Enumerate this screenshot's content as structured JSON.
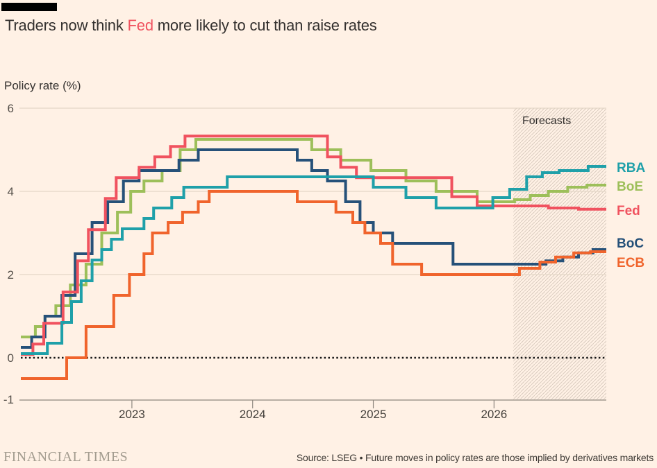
{
  "page": {
    "background": "#FFF1E5",
    "accent_bar_color": "#000000"
  },
  "header": {
    "title_prefix": "Traders now think ",
    "title_highlight": "Fed",
    "title_suffix": " more likely to cut than raise rates",
    "highlight_color": "#f0525f"
  },
  "chart_data": {
    "type": "line",
    "title": "Traders now think Fed more likely to cut than raise rates",
    "ylabel": "Policy rate (%)",
    "forecast_label": "Forecasts",
    "x_ticks": [
      "2023",
      "2024",
      "2025",
      "2026"
    ],
    "x_tick_values": [
      2023,
      2024,
      2025,
      2026
    ],
    "y_ticks": [
      {
        "label": "6",
        "value": 6
      },
      {
        "label": "4",
        "value": 4
      },
      {
        "label": "2",
        "value": 2
      },
      {
        "label": "0",
        "value": 0
      },
      {
        "label": "-1",
        "value": -1
      }
    ],
    "ylim": [
      -1,
      6
    ],
    "x_domain": [
      2022.08,
      2026.93
    ],
    "forecast_start": 2026.16,
    "grid_values": [
      6,
      4,
      2
    ],
    "zero_value": 0,
    "legend_position": "right",
    "draw_order": [
      "BoE",
      "BoC",
      "Fed",
      "ECB",
      "RBA"
    ],
    "series": [
      {
        "name": "RBA",
        "color": "#1fa0a9",
        "label_y": 241,
        "points": [
          [
            2022.08,
            0.1
          ],
          [
            2022.3,
            0.35
          ],
          [
            2022.42,
            0.85
          ],
          [
            2022.5,
            1.35
          ],
          [
            2022.58,
            1.85
          ],
          [
            2022.67,
            2.35
          ],
          [
            2022.75,
            2.6
          ],
          [
            2022.83,
            2.85
          ],
          [
            2022.92,
            3.1
          ],
          [
            2023.1,
            3.35
          ],
          [
            2023.18,
            3.6
          ],
          [
            2023.33,
            3.85
          ],
          [
            2023.43,
            4.1
          ],
          [
            2023.79,
            4.35
          ],
          [
            2025.0,
            4.1
          ],
          [
            2025.27,
            3.85
          ],
          [
            2025.52,
            3.6
          ],
          [
            2025.99,
            3.85
          ],
          [
            2026.13,
            4.05
          ],
          [
            2026.27,
            4.35
          ],
          [
            2026.4,
            4.45
          ],
          [
            2026.54,
            4.5
          ],
          [
            2026.78,
            4.6
          ]
        ]
      },
      {
        "name": "BoE",
        "color": "#9dbf5a",
        "label_y": 268,
        "points": [
          [
            2022.08,
            0.5
          ],
          [
            2022.2,
            0.75
          ],
          [
            2022.28,
            1.0
          ],
          [
            2022.37,
            1.25
          ],
          [
            2022.49,
            1.75
          ],
          [
            2022.62,
            2.25
          ],
          [
            2022.75,
            3.0
          ],
          [
            2022.88,
            3.5
          ],
          [
            2022.99,
            4.0
          ],
          [
            2023.1,
            4.25
          ],
          [
            2023.25,
            4.5
          ],
          [
            2023.4,
            5.0
          ],
          [
            2023.53,
            5.25
          ],
          [
            2024.49,
            5.0
          ],
          [
            2024.73,
            4.75
          ],
          [
            2024.98,
            4.5
          ],
          [
            2025.27,
            4.25
          ],
          [
            2025.52,
            4.0
          ],
          [
            2025.86,
            3.75
          ],
          [
            2026.17,
            3.8
          ],
          [
            2026.3,
            3.9
          ],
          [
            2026.45,
            4.0
          ],
          [
            2026.61,
            4.1
          ],
          [
            2026.77,
            4.15
          ]
        ]
      },
      {
        "name": "Fed",
        "color": "#f0525f",
        "label_y": 303,
        "points": [
          [
            2022.08,
            0.08
          ],
          [
            2022.18,
            0.33
          ],
          [
            2022.27,
            0.83
          ],
          [
            2022.43,
            1.58
          ],
          [
            2022.55,
            2.33
          ],
          [
            2022.64,
            3.08
          ],
          [
            2022.78,
            3.83
          ],
          [
            2022.87,
            4.33
          ],
          [
            2023.06,
            4.58
          ],
          [
            2023.19,
            4.83
          ],
          [
            2023.32,
            5.08
          ],
          [
            2023.44,
            5.33
          ],
          [
            2024.62,
            4.83
          ],
          [
            2024.73,
            4.58
          ],
          [
            2024.86,
            4.33
          ],
          [
            2025.65,
            3.87
          ],
          [
            2025.86,
            3.65
          ],
          [
            2026.45,
            3.6
          ],
          [
            2026.7,
            3.57
          ]
        ]
      },
      {
        "name": "BoC",
        "color": "#265179",
        "label_y": 350,
        "points": [
          [
            2022.08,
            0.25
          ],
          [
            2022.17,
            0.5
          ],
          [
            2022.28,
            1.0
          ],
          [
            2022.42,
            1.5
          ],
          [
            2022.53,
            2.5
          ],
          [
            2022.67,
            3.25
          ],
          [
            2022.8,
            3.75
          ],
          [
            2022.93,
            4.25
          ],
          [
            2023.06,
            4.5
          ],
          [
            2023.39,
            4.75
          ],
          [
            2023.55,
            5.0
          ],
          [
            2024.37,
            4.75
          ],
          [
            2024.49,
            4.5
          ],
          [
            2024.62,
            4.25
          ],
          [
            2024.77,
            3.75
          ],
          [
            2024.89,
            3.25
          ],
          [
            2025.0,
            3.0
          ],
          [
            2025.16,
            2.75
          ],
          [
            2025.66,
            2.25
          ],
          [
            2026.43,
            2.33
          ],
          [
            2026.57,
            2.42
          ],
          [
            2026.7,
            2.52
          ],
          [
            2026.82,
            2.6
          ]
        ]
      },
      {
        "name": "ECB",
        "color": "#f0642c",
        "label_y": 378,
        "points": [
          [
            2022.08,
            -0.5
          ],
          [
            2022.46,
            0.0
          ],
          [
            2022.62,
            0.75
          ],
          [
            2022.85,
            1.5
          ],
          [
            2022.98,
            2.0
          ],
          [
            2023.1,
            2.5
          ],
          [
            2023.17,
            3.0
          ],
          [
            2023.3,
            3.25
          ],
          [
            2023.42,
            3.5
          ],
          [
            2023.55,
            3.75
          ],
          [
            2023.64,
            4.0
          ],
          [
            2024.37,
            3.75
          ],
          [
            2024.69,
            3.5
          ],
          [
            2024.83,
            3.25
          ],
          [
            2024.93,
            3.0
          ],
          [
            2025.06,
            2.75
          ],
          [
            2025.16,
            2.25
          ],
          [
            2025.4,
            2.0
          ],
          [
            2026.21,
            2.15
          ],
          [
            2026.38,
            2.3
          ],
          [
            2026.51,
            2.42
          ],
          [
            2026.66,
            2.52
          ],
          [
            2026.8,
            2.55
          ]
        ]
      }
    ]
  },
  "footer": {
    "brand": "FINANCIAL TIMES",
    "source": "Source: LSEG • Future moves in policy rates are those implied by derivatives markets"
  }
}
